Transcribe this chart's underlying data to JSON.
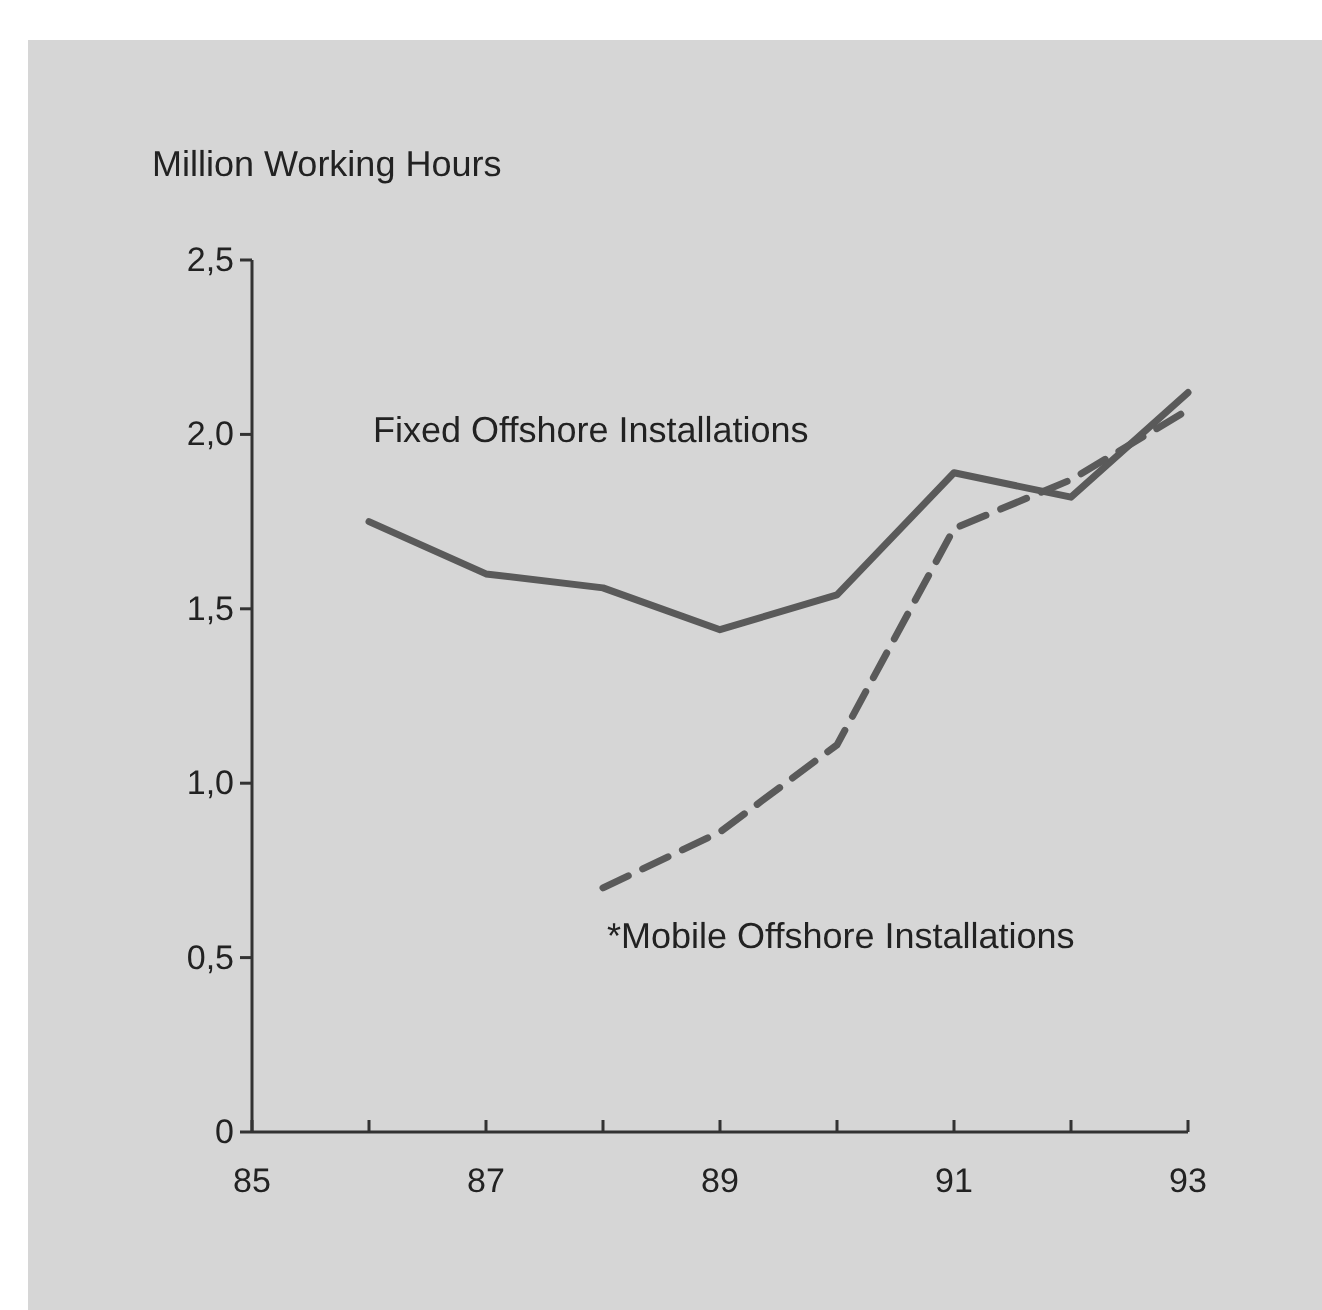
{
  "chart_data": {
    "type": "line",
    "ylabel": "Million Working Hours",
    "x": [
      86,
      87,
      88,
      89,
      90,
      91,
      92,
      93
    ],
    "series": [
      {
        "name": "Fixed Offshore Installations",
        "color": "#5a5a5a",
        "values": [
          1.75,
          1.6,
          1.56,
          1.44,
          1.54,
          1.89,
          1.82,
          2.12
        ]
      },
      {
        "name": "*Mobile Offshore Installations",
        "color": "#5a5a5a",
        "line_style": "dashed",
        "values": [
          null,
          null,
          0.7,
          0.86,
          1.11,
          1.73,
          1.87,
          2.07
        ]
      }
    ],
    "xlim": [
      85,
      93
    ],
    "xticks": [
      85,
      {
        "value": 86,
        "label": null
      },
      87,
      {
        "value": 88,
        "label": null
      },
      89,
      {
        "value": 90,
        "label": null
      },
      91,
      {
        "value": 92,
        "label": null
      },
      93
    ],
    "ylim": [
      0,
      2.5
    ],
    "yticks": [
      0,
      {
        "value": 0.5,
        "label": "0,5"
      },
      {
        "value": 1,
        "label": "1,0"
      },
      {
        "value": 1.5,
        "label": "1,5"
      },
      {
        "value": 2,
        "label": "2,0"
      },
      {
        "value": 2.5,
        "label": "2,5"
      }
    ],
    "grid": false,
    "marker": "none"
  }
}
